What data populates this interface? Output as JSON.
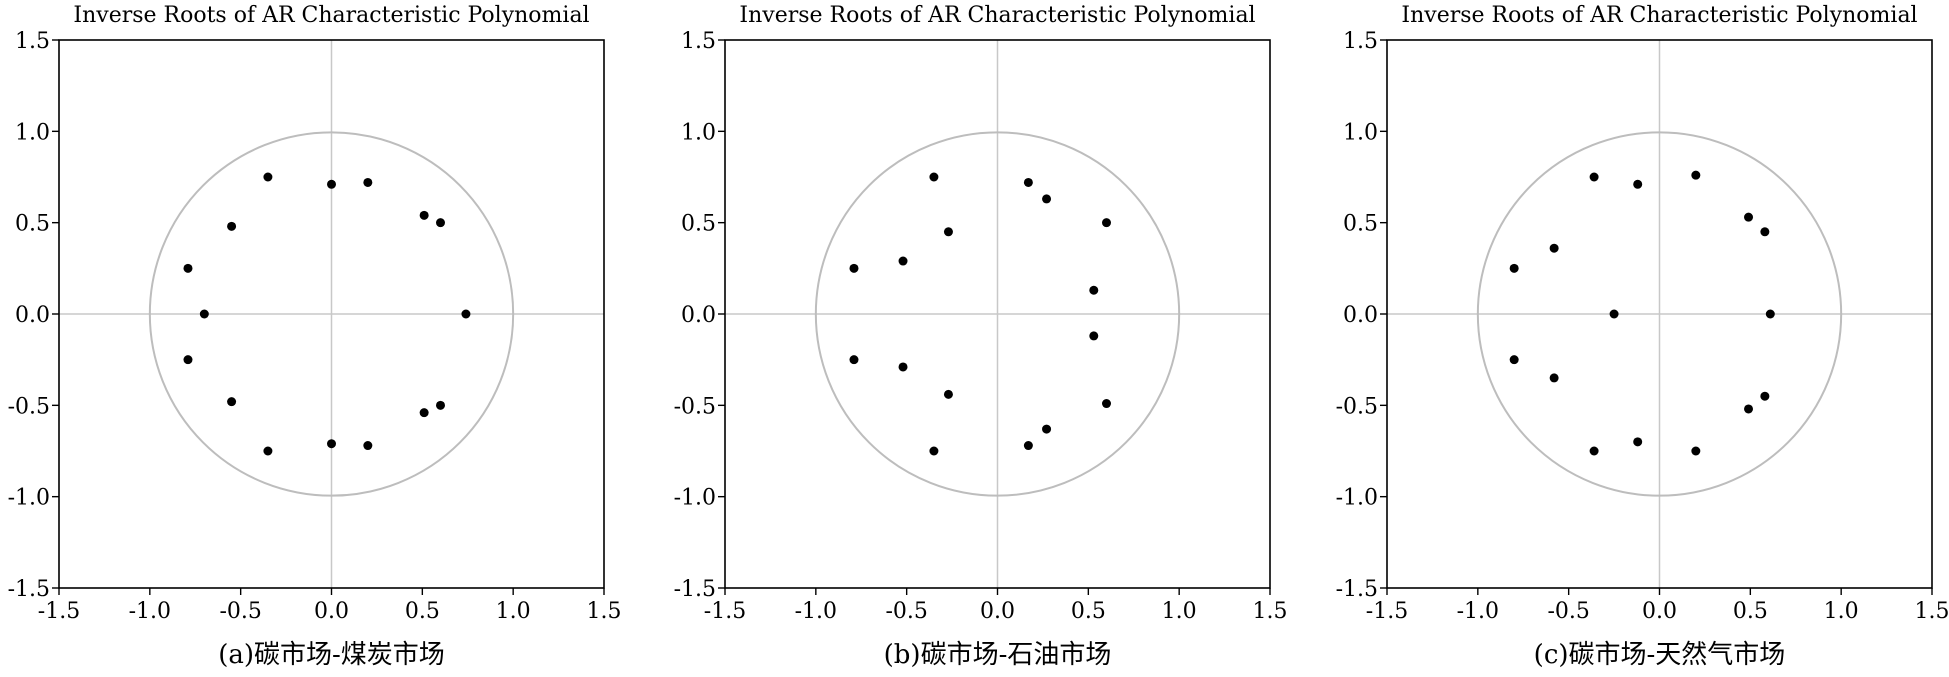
{
  "chart_data": [
    {
      "type": "scatter",
      "title": "Inverse Roots of AR Characteristic Polynomial",
      "caption": "(a)碳市场-煤炭市场",
      "xlim": [
        -1.5,
        1.5
      ],
      "ylim": [
        -1.5,
        1.5
      ],
      "xticks": [
        "-1.5",
        "-1.0",
        "-0.5",
        "0.0",
        "0.5",
        "1.0",
        "1.5"
      ],
      "yticks": [
        "1.5",
        "1.0",
        "0.5",
        "0.0",
        "-0.5",
        "-1.0",
        "-1.5"
      ],
      "unit_circle": true,
      "points": [
        {
          "x": -0.35,
          "y": 0.75
        },
        {
          "x": 0.0,
          "y": 0.71
        },
        {
          "x": 0.2,
          "y": 0.72
        },
        {
          "x": -0.55,
          "y": 0.48
        },
        {
          "x": 0.51,
          "y": 0.54
        },
        {
          "x": 0.6,
          "y": 0.5
        },
        {
          "x": -0.79,
          "y": 0.25
        },
        {
          "x": -0.7,
          "y": 0.0
        },
        {
          "x": 0.74,
          "y": 0.0
        },
        {
          "x": -0.79,
          "y": -0.25
        },
        {
          "x": -0.55,
          "y": -0.48
        },
        {
          "x": 0.51,
          "y": -0.54
        },
        {
          "x": 0.6,
          "y": -0.5
        },
        {
          "x": -0.35,
          "y": -0.75
        },
        {
          "x": 0.0,
          "y": -0.71
        },
        {
          "x": 0.2,
          "y": -0.72
        }
      ]
    },
    {
      "type": "scatter",
      "title": "Inverse Roots of AR Characteristic Polynomial",
      "caption": "(b)碳市场-石油市场",
      "xlim": [
        -1.5,
        1.5
      ],
      "ylim": [
        -1.5,
        1.5
      ],
      "xticks": [
        "-1.5",
        "-1.0",
        "-0.5",
        "0.0",
        "0.5",
        "1.0",
        "1.5"
      ],
      "yticks": [
        "1.5",
        "1.0",
        "0.5",
        "0.0",
        "-0.5",
        "-1.0",
        "-1.5"
      ],
      "unit_circle": true,
      "points": [
        {
          "x": -0.35,
          "y": 0.75
        },
        {
          "x": 0.17,
          "y": 0.72
        },
        {
          "x": 0.27,
          "y": 0.63
        },
        {
          "x": -0.27,
          "y": 0.45
        },
        {
          "x": 0.6,
          "y": 0.5
        },
        {
          "x": -0.52,
          "y": 0.29
        },
        {
          "x": -0.79,
          "y": 0.25
        },
        {
          "x": 0.53,
          "y": 0.13
        },
        {
          "x": 0.53,
          "y": -0.12
        },
        {
          "x": -0.79,
          "y": -0.25
        },
        {
          "x": -0.52,
          "y": -0.29
        },
        {
          "x": 0.6,
          "y": -0.49
        },
        {
          "x": -0.27,
          "y": -0.44
        },
        {
          "x": 0.27,
          "y": -0.63
        },
        {
          "x": -0.35,
          "y": -0.75
        },
        {
          "x": 0.17,
          "y": -0.72
        }
      ]
    },
    {
      "type": "scatter",
      "title": "Inverse Roots of AR Characteristic Polynomial",
      "caption": "(c)碳市场-天然气市场",
      "xlim": [
        -1.5,
        1.5
      ],
      "ylim": [
        -1.5,
        1.5
      ],
      "xticks": [
        "-1.5",
        "-1.0",
        "-0.5",
        "0.0",
        "0.5",
        "1.0",
        "1.5"
      ],
      "yticks": [
        "1.5",
        "1.0",
        "0.5",
        "0.0",
        "-0.5",
        "-1.0",
        "-1.5"
      ],
      "unit_circle": true,
      "points": [
        {
          "x": -0.36,
          "y": 0.75
        },
        {
          "x": -0.12,
          "y": 0.71
        },
        {
          "x": 0.2,
          "y": 0.76
        },
        {
          "x": 0.49,
          "y": 0.53
        },
        {
          "x": 0.58,
          "y": 0.45
        },
        {
          "x": -0.58,
          "y": 0.36
        },
        {
          "x": -0.8,
          "y": 0.25
        },
        {
          "x": -0.25,
          "y": 0.0
        },
        {
          "x": 0.61,
          "y": 0.0
        },
        {
          "x": -0.8,
          "y": -0.25
        },
        {
          "x": -0.58,
          "y": -0.35
        },
        {
          "x": 0.58,
          "y": -0.45
        },
        {
          "x": 0.49,
          "y": -0.52
        },
        {
          "x": -0.36,
          "y": -0.75
        },
        {
          "x": -0.12,
          "y": -0.7
        },
        {
          "x": 0.2,
          "y": -0.75
        }
      ]
    }
  ]
}
